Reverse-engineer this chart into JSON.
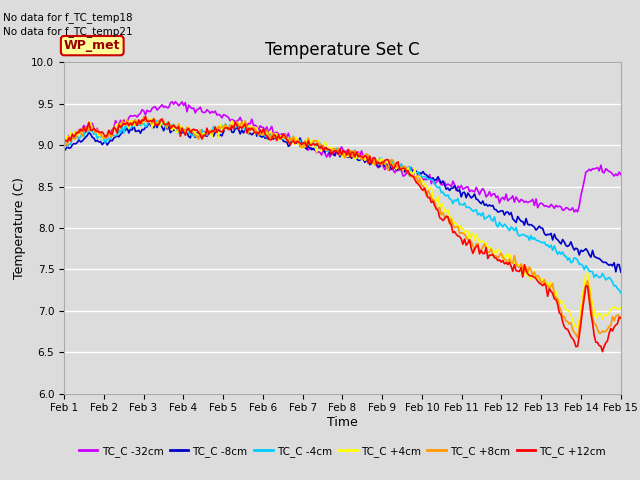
{
  "title": "Temperature Set C",
  "xlabel": "Time",
  "ylabel": "Temperature (C)",
  "ylim": [
    6.0,
    10.0
  ],
  "yticks": [
    6.0,
    6.5,
    7.0,
    7.5,
    8.0,
    8.5,
    9.0,
    9.5,
    10.0
  ],
  "background_color": "#dcdcdc",
  "plot_bg_color": "#dcdcdc",
  "grid_color": "white",
  "annotation_text1": "No data for f_TC_temp18",
  "annotation_text2": "No data for f_TC_temp21",
  "wp_met_label": "WP_met",
  "legend_entries": [
    "TC_C -32cm",
    "TC_C -8cm",
    "TC_C -4cm",
    "TC_C +4cm",
    "TC_C +8cm",
    "TC_C +12cm"
  ],
  "line_colors": [
    "#cc00ff",
    "#0000cc",
    "#00ccff",
    "#ffff00",
    "#ff9900",
    "#ff0000"
  ],
  "line_width": 1.2,
  "x_tick_labels": [
    "Feb 1",
    "Feb 2",
    "Feb 3",
    "Feb 4",
    "Feb 5",
    "Feb 6",
    "Feb 7",
    "Feb 8",
    "Feb 9",
    "Feb 10",
    "Feb 11",
    "Feb 12",
    "Feb 13",
    "Feb 14",
    "Feb 15"
  ]
}
